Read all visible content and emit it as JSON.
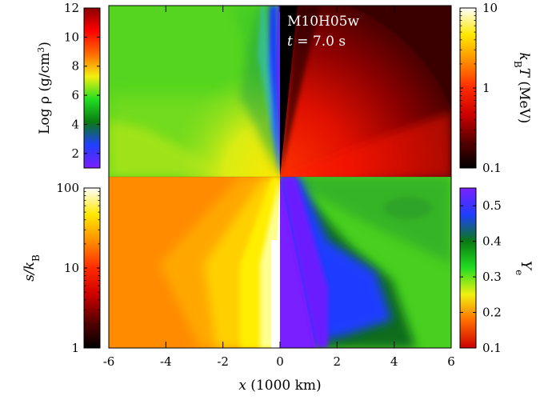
{
  "chart_data": {
    "type": "heatmap",
    "model_label": "M10H05w",
    "time_label": "t = 7.0 s",
    "xaxis": {
      "label": "x (1000 km)",
      "range": [
        -6,
        6
      ],
      "ticks": [
        -6,
        -4,
        -2,
        0,
        2,
        4,
        6
      ]
    },
    "quadrants": [
      {
        "position": "top-left",
        "quantity": "Log ρ (g/cm³)",
        "scale": "linear",
        "range": [
          1,
          12
        ]
      },
      {
        "position": "top-right",
        "quantity": "kB T (MeV)",
        "scale": "log",
        "range": [
          0.1,
          10
        ]
      },
      {
        "position": "bottom-left",
        "quantity": "s/kB",
        "scale": "log",
        "range": [
          1,
          100
        ]
      },
      {
        "position": "bottom-right",
        "quantity": "Ye",
        "scale": "linear",
        "range": [
          0.1,
          0.55
        ]
      }
    ],
    "colorbars": [
      {
        "id": "density",
        "position": "left-top",
        "label_parts": [
          "Log ",
          "ρ",
          " (g/cm",
          "3",
          ")"
        ],
        "scale": "linear",
        "range": [
          1,
          12
        ],
        "ticks": [
          2,
          4,
          6,
          8,
          10,
          12
        ],
        "colors": [
          "#7a1fff",
          "#1f3fff",
          "#0a7a12",
          "#22dd22",
          "#f2ef10",
          "#ff6a00",
          "#ff0000",
          "#8a0000"
        ]
      },
      {
        "id": "temperature",
        "position": "right-top",
        "label_parts": [
          "k",
          "B",
          "T (MeV)"
        ],
        "scale": "log",
        "range": [
          0.1,
          10
        ],
        "ticks": [
          {
            "value": 0.1,
            "label": "0.1"
          },
          {
            "value": 1,
            "label": "1"
          },
          {
            "value": 10,
            "label": "10"
          }
        ],
        "colors": [
          "#000000",
          "#5a0000",
          "#cc0000",
          "#ff2a00",
          "#ff8c00",
          "#ffe800",
          "#ffffff"
        ]
      },
      {
        "id": "entropy",
        "position": "left-bottom",
        "label_parts": [
          "s/k",
          "B"
        ],
        "scale": "log",
        "range": [
          1,
          100
        ],
        "ticks": [
          {
            "value": 1,
            "label": "1"
          },
          {
            "value": 10,
            "label": "10"
          },
          {
            "value": 100,
            "label": "100"
          }
        ],
        "colors": [
          "#000000",
          "#5a0000",
          "#cc0000",
          "#ff2a00",
          "#ff8c00",
          "#ffe800",
          "#ffffff"
        ]
      },
      {
        "id": "electron_fraction",
        "position": "right-bottom",
        "label_parts": [
          "Y",
          "e"
        ],
        "scale": "linear",
        "range": [
          0.1,
          0.55
        ],
        "ticks": [
          {
            "value": 0.1,
            "label": "0.1"
          },
          {
            "value": 0.2,
            "label": "0.2"
          },
          {
            "value": 0.3,
            "label": "0.3"
          },
          {
            "value": 0.4,
            "label": "0.4"
          },
          {
            "value": 0.5,
            "label": "0.5"
          }
        ],
        "colors": [
          "#cc0000",
          "#ff6a00",
          "#f2ef10",
          "#22dd22",
          "#0a7a12",
          "#1f3fff",
          "#7a1fff"
        ]
      }
    ]
  }
}
